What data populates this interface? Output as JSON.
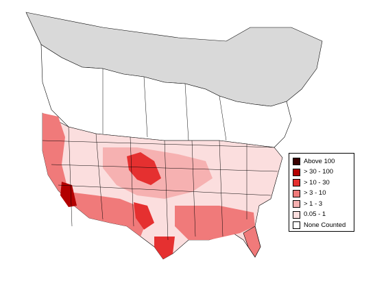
{
  "legend": {
    "items": [
      {
        "label": "Above 100",
        "color": "#3a0000"
      },
      {
        "label": "> 30 - 100",
        "color": "#b30000"
      },
      {
        "label": "> 10 - 30",
        "color": "#e53030"
      },
      {
        "label": "> 3 - 10",
        "color": "#f07a7a"
      },
      {
        "label": "> 1 - 3",
        "color": "#f6b1b1"
      },
      {
        "label": " 0.05 - 1",
        "color": "#fbdede"
      },
      {
        "label": "None Counted",
        "color": "#ffffff"
      }
    ]
  },
  "colors": {
    "no_data_region": "#d9d9d9",
    "none_counted": "#ffffff",
    "border": "#000000"
  }
}
